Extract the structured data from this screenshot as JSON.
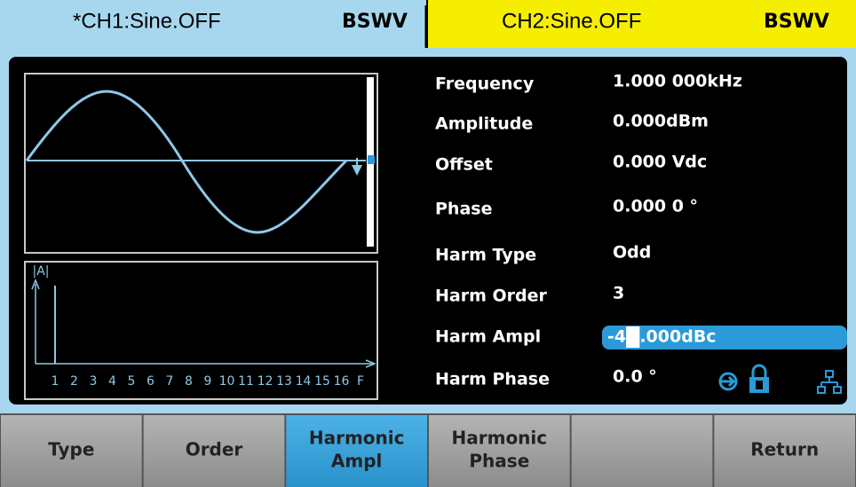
{
  "header": {
    "ch1": {
      "title": "*CH1:Sine.OFF",
      "mode": "BSWV"
    },
    "ch2": {
      "title": "CH2:Sine.OFF",
      "mode": "BSWV"
    }
  },
  "spectrum": {
    "axis_label": "|A|",
    "x_labels": [
      "1",
      "2",
      "3",
      "4",
      "5",
      "6",
      "7",
      "8",
      "9",
      "10",
      "11",
      "12",
      "13",
      "14",
      "15",
      "16",
      "F"
    ]
  },
  "parameters": [
    {
      "label": "Frequency",
      "value": "1.000 000kHz"
    },
    {
      "label": "Amplitude",
      "value": "0.000dBm"
    },
    {
      "label": "Offset",
      "value": "0.000 Vdc"
    },
    {
      "label": "Phase",
      "value": "0.000 0 °"
    },
    {
      "label": "Harm Type",
      "value": "Odd"
    },
    {
      "label": "Harm Order",
      "value": "3"
    },
    {
      "label": "Harm Ampl",
      "value": {
        "before": "-4",
        "cursor": "0",
        "after": ".000dBc"
      }
    },
    {
      "label": "Harm Phase",
      "value": "0.0 °"
    }
  ],
  "softkeys": [
    [
      "Type"
    ],
    [
      "Order"
    ],
    [
      "Harmonic",
      "Ampl"
    ],
    [
      "Harmonic",
      "Phase"
    ],
    [],
    [
      "Return"
    ]
  ],
  "active_softkey": 2
}
